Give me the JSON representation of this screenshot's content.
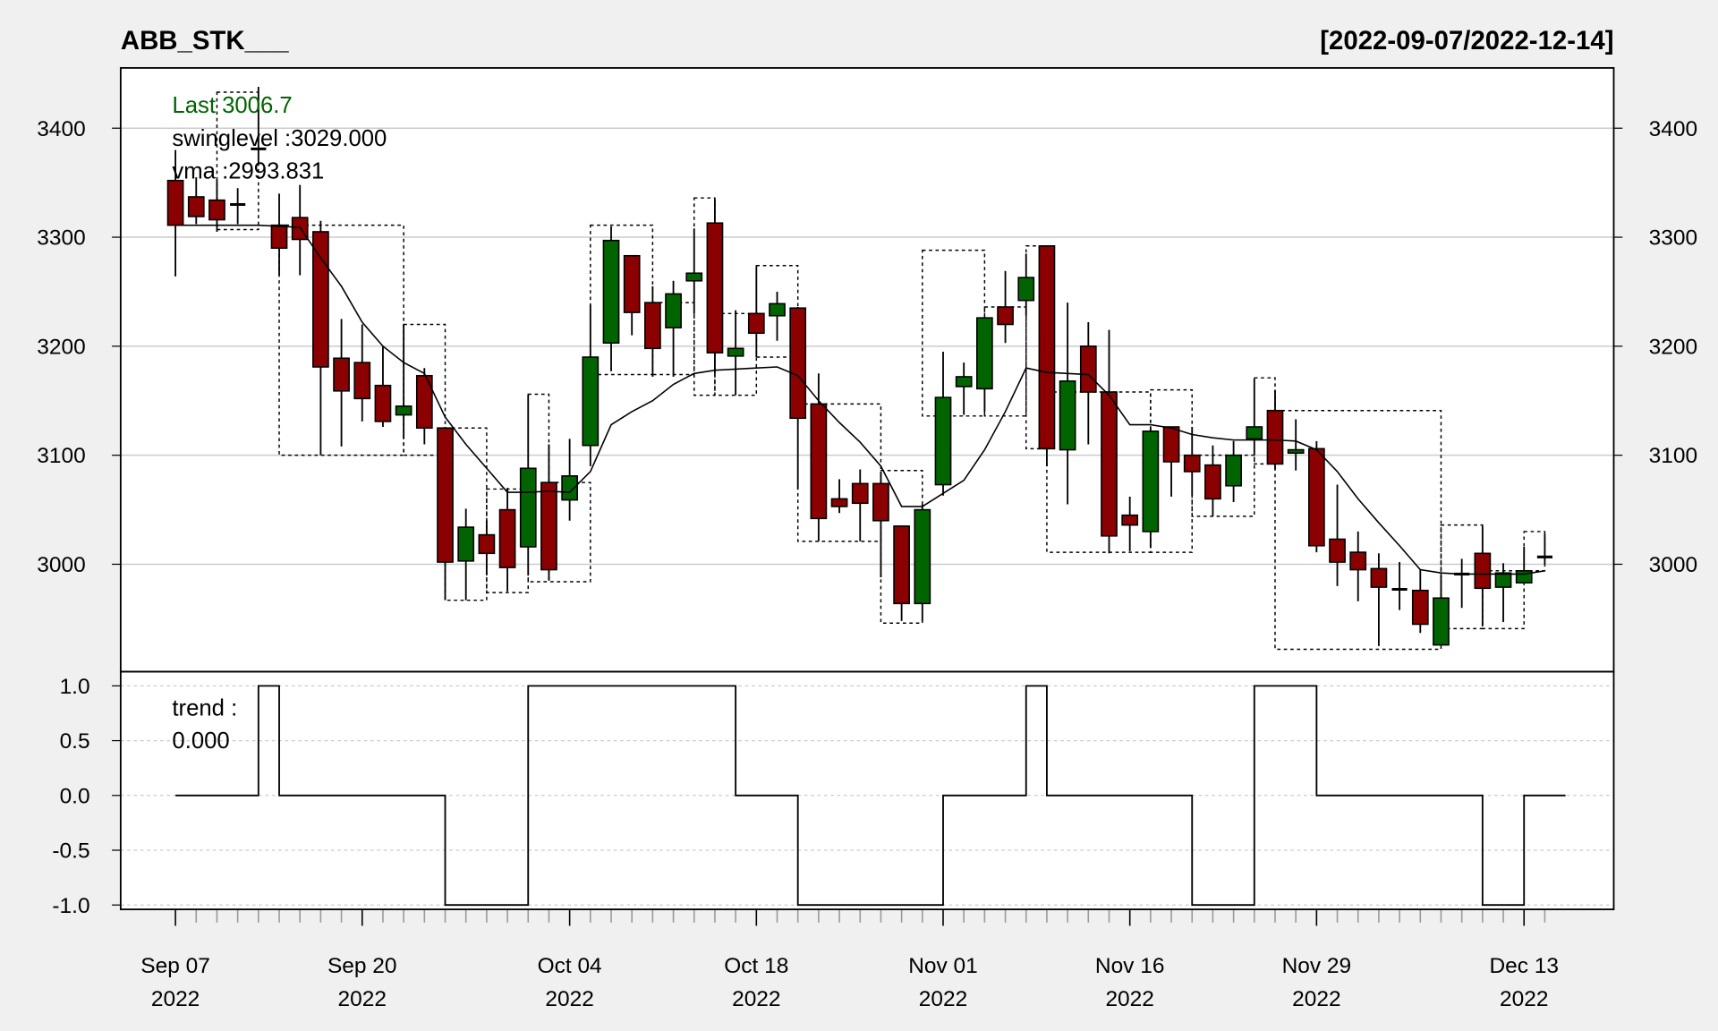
{
  "chart_data": {
    "type": "candlestick",
    "title": "ABB_STK___",
    "date_range": "[2022-09-07/2022-12-14]",
    "colors": {
      "up": "#006400",
      "down": "#8b0000",
      "background": "#f0f0f0",
      "panel": "#ffffff",
      "grid": "#cccccc"
    },
    "grid": true,
    "legend": {
      "last_label": "Last 3006.7",
      "swinglevel_label": "swinglevel :3029.000",
      "vma_label": "vma :2993.831",
      "trend_label": "trend :",
      "trend_value": "0.000"
    },
    "price_axis": {
      "ticks": [
        "3000",
        "3100",
        "3200",
        "3300",
        "3400"
      ],
      "range": [
        2905,
        3460
      ]
    },
    "trend_axis": {
      "ticks": [
        "1.0",
        "0.5",
        "0.0",
        "-0.5",
        "-1.0"
      ],
      "range": [
        -1.05,
        1.05
      ]
    },
    "x_labels": [
      {
        "index": 1,
        "label": "Sep 07",
        "year": "2022"
      },
      {
        "index": 10,
        "label": "Sep 20",
        "year": "2022"
      },
      {
        "index": 20,
        "label": "Oct 04",
        "year": "2022"
      },
      {
        "index": 29,
        "label": "Oct 18",
        "year": "2022"
      },
      {
        "index": 38,
        "label": "Nov 01",
        "year": "2022"
      },
      {
        "index": 47,
        "label": "Nov 16",
        "year": "2022"
      },
      {
        "index": 56,
        "label": "Nov 29",
        "year": "2022"
      },
      {
        "index": 66,
        "label": "Dec 13",
        "year": "2022"
      }
    ],
    "ohlc": [
      [
        3352,
        3380,
        3264,
        3311
      ],
      [
        3337,
        3355,
        3312,
        3319
      ],
      [
        3334,
        3353,
        3305,
        3316
      ],
      [
        3330,
        3345,
        3312,
        3330
      ],
      [
        3381,
        3438,
        3366,
        3381
      ],
      [
        3311,
        3340,
        3265,
        3290
      ],
      [
        3318,
        3348,
        3265,
        3298
      ],
      [
        3305,
        3315,
        3100,
        3181
      ],
      [
        3189,
        3225,
        3108,
        3159
      ],
      [
        3185,
        3220,
        3131,
        3152
      ],
      [
        3164,
        3200,
        3126,
        3131
      ],
      [
        3137,
        3220,
        3115,
        3145
      ],
      [
        3173,
        3180,
        3110,
        3125
      ],
      [
        3125,
        3126,
        2967,
        3002
      ],
      [
        3003,
        3051,
        2967,
        3034
      ],
      [
        3027,
        3040,
        2990,
        3010
      ],
      [
        3050,
        3070,
        2975,
        2997
      ],
      [
        3016,
        3155,
        2990,
        3088
      ],
      [
        3075,
        3110,
        2985,
        2995
      ],
      [
        3059,
        3115,
        3040,
        3081
      ],
      [
        3109,
        3238,
        3090,
        3190
      ],
      [
        3203,
        3310,
        3177,
        3297
      ],
      [
        3283,
        3283,
        3210,
        3231
      ],
      [
        3240,
        3255,
        3172,
        3198
      ],
      [
        3217,
        3260,
        3172,
        3248
      ],
      [
        3260,
        3308,
        3230,
        3267
      ],
      [
        3313,
        3335,
        3175,
        3194
      ],
      [
        3191,
        3233,
        3155,
        3198
      ],
      [
        3230,
        3273,
        3190,
        3212
      ],
      [
        3228,
        3250,
        3205,
        3239
      ],
      [
        3235,
        3236,
        3069,
        3134
      ],
      [
        3147,
        3175,
        3021,
        3042
      ],
      [
        3060,
        3078,
        3047,
        3053
      ],
      [
        3074,
        3087,
        3021,
        3056
      ],
      [
        3074,
        3085,
        2988,
        3040
      ],
      [
        3035,
        3035,
        2948,
        2964
      ],
      [
        2964,
        3055,
        2948,
        3050
      ],
      [
        3073,
        3195,
        3063,
        3153
      ],
      [
        3163,
        3185,
        3137,
        3172
      ],
      [
        3161,
        3227,
        3140,
        3226
      ],
      [
        3236,
        3269,
        3203,
        3220
      ],
      [
        3242,
        3285,
        3228,
        3263
      ],
      [
        3292,
        3292,
        3090,
        3106
      ],
      [
        3105,
        3240,
        3055,
        3168
      ],
      [
        3200,
        3222,
        3110,
        3158
      ],
      [
        3158,
        3215,
        3010,
        3026
      ],
      [
        3045,
        3062,
        3012,
        3036
      ],
      [
        3030,
        3125,
        3015,
        3122
      ],
      [
        3126,
        3126,
        3062,
        3094
      ],
      [
        3100,
        3126,
        3063,
        3085
      ],
      [
        3091,
        3109,
        3044,
        3060
      ],
      [
        3072,
        3113,
        3057,
        3100
      ],
      [
        3115,
        3170,
        3100,
        3126
      ],
      [
        3141,
        3160,
        3087,
        3092
      ],
      [
        3102,
        3133,
        3086,
        3105
      ],
      [
        3106,
        3113,
        3011,
        3017
      ],
      [
        3023,
        3073,
        2980,
        3002
      ],
      [
        3011,
        3030,
        2966,
        2995
      ],
      [
        2996,
        3010,
        2925,
        2979
      ],
      [
        2977,
        3002,
        2958,
        2977
      ],
      [
        2976,
        2995,
        2937,
        2945
      ],
      [
        2926,
        2990,
        2926,
        2969
      ],
      [
        2991,
        3005,
        2960,
        2991
      ],
      [
        3010,
        3035,
        2943,
        2978
      ],
      [
        2979,
        3001,
        2947,
        2992
      ],
      [
        2983,
        3016,
        2985,
        2994
      ],
      [
        3006.7,
        3028,
        3000,
        3006.7
      ]
    ],
    "vma": [
      3311,
      3311,
      3311,
      3311,
      3311,
      3310,
      3309,
      3281,
      3255,
      3222,
      3200,
      3185,
      3175,
      3135,
      3110,
      3088,
      3066,
      3066,
      3067,
      3066,
      3085,
      3128,
      3140,
      3150,
      3165,
      3175,
      3178,
      3179,
      3180,
      3181,
      3173,
      3150,
      3130,
      3112,
      3090,
      3053,
      3053,
      3065,
      3077,
      3105,
      3140,
      3180,
      3176,
      3175,
      3174,
      3155,
      3128,
      3128,
      3125,
      3119,
      3116,
      3114,
      3114,
      3114,
      3113,
      3105,
      3085,
      3060,
      3038,
      3017,
      2995,
      2992,
      2991,
      2991,
      2991,
      2991,
      2994
    ],
    "swing_boxes": [
      [
        3,
        5,
        3307,
        3433
      ],
      [
        6,
        12,
        3100,
        3311
      ],
      [
        12,
        14,
        3100,
        3220
      ],
      [
        14,
        16,
        2967,
        3125
      ],
      [
        16,
        18,
        2974,
        3069
      ],
      [
        18,
        19,
        2984,
        3156
      ],
      [
        19,
        21,
        2984,
        3075
      ],
      [
        21,
        24,
        3174,
        3311
      ],
      [
        24,
        26,
        3174,
        3240
      ],
      [
        26,
        27,
        3155,
        3336
      ],
      [
        27,
        29,
        3155,
        3230
      ],
      [
        29,
        31,
        3190,
        3274
      ],
      [
        31,
        35,
        3021,
        3147
      ],
      [
        35,
        37,
        2946,
        3086
      ],
      [
        37,
        40,
        3136,
        3288
      ],
      [
        40,
        42,
        3136,
        3236
      ],
      [
        42,
        43,
        3106,
        3292
      ],
      [
        43,
        48,
        3011,
        3158
      ],
      [
        48,
        50,
        3011,
        3160
      ],
      [
        50,
        53,
        3044,
        3100
      ],
      [
        53,
        54,
        3092,
        3171
      ],
      [
        54,
        62,
        2922,
        3141
      ],
      [
        62,
        64,
        2941,
        3036
      ],
      [
        64,
        66,
        2941,
        2994
      ],
      [
        66,
        67,
        2994,
        3030
      ]
    ],
    "trend": [
      0,
      0,
      0,
      0,
      1,
      0,
      0,
      0,
      0,
      0,
      0,
      0,
      0,
      -1,
      -1,
      -1,
      -1,
      1,
      1,
      1,
      1,
      1,
      1,
      1,
      1,
      1,
      1,
      0,
      0,
      0,
      -1,
      -1,
      -1,
      -1,
      -1,
      -1,
      -1,
      0,
      0,
      0,
      0,
      1,
      0,
      0,
      0,
      0,
      0,
      0,
      0,
      -1,
      -1,
      -1,
      1,
      1,
      1,
      0,
      0,
      0,
      0,
      0,
      0,
      0,
      0,
      -1,
      -1,
      0,
      0
    ]
  }
}
